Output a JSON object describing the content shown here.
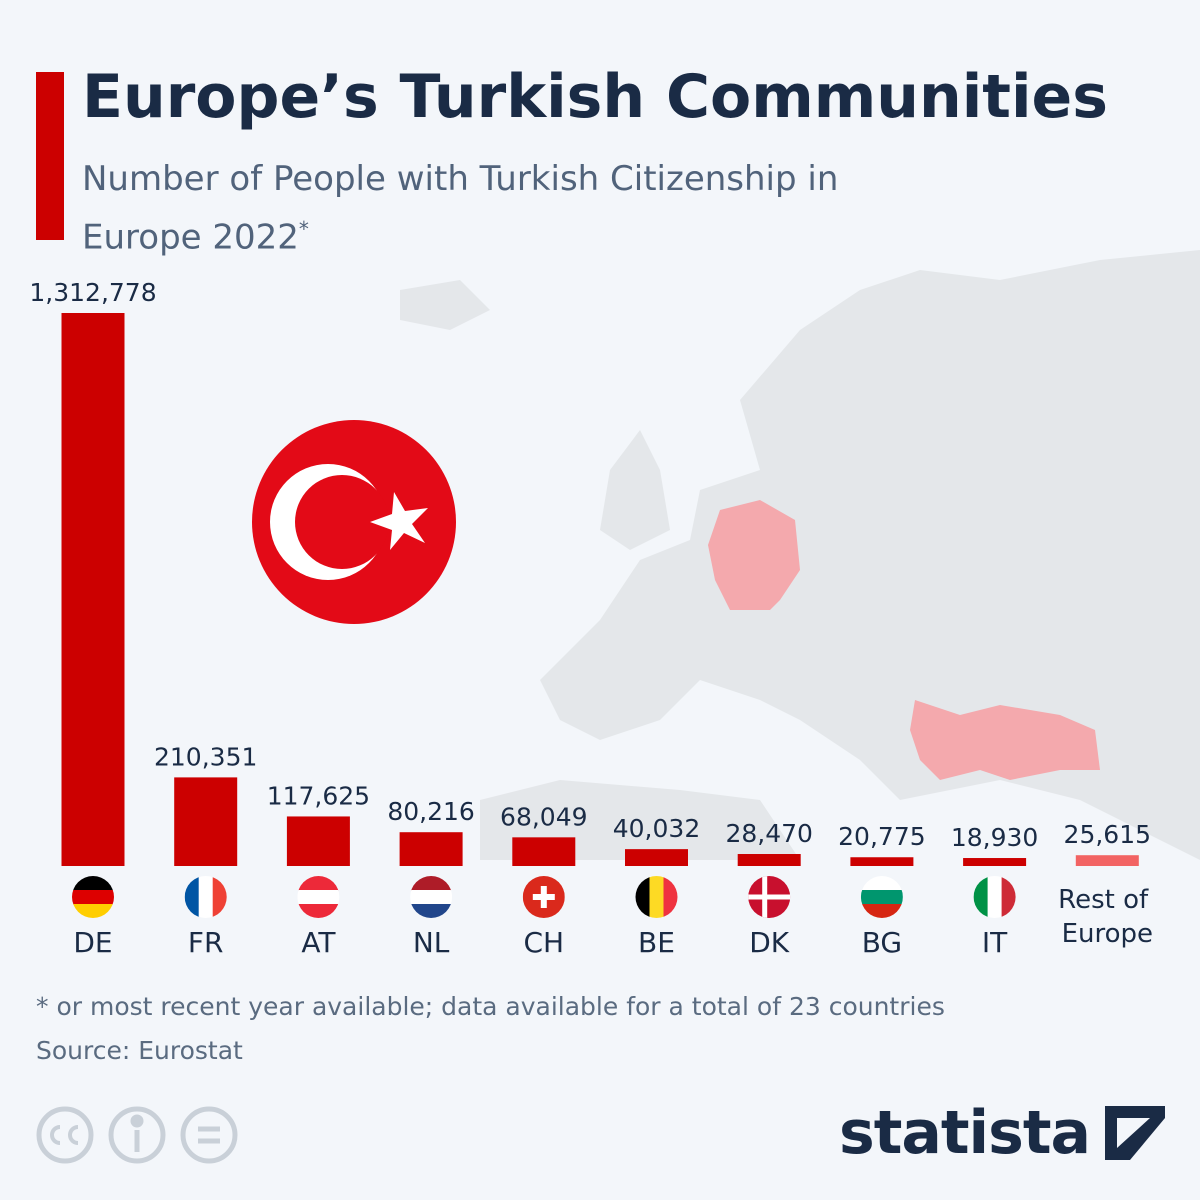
{
  "title": "Europe’s Turkish Communities",
  "subtitle": "Number of People with Turkish Citizenship in Europe 2022",
  "subtitle_note": "*",
  "chart_data": {
    "type": "bar",
    "categories": [
      "DE",
      "FR",
      "AT",
      "NL",
      "CH",
      "BE",
      "DK",
      "BG",
      "IT",
      "Rest of Europe"
    ],
    "values": [
      1312778,
      210351,
      117625,
      80216,
      68049,
      40032,
      28470,
      20775,
      18930,
      25615
    ],
    "value_labels": [
      "1,312,778",
      "210,351",
      "117,625",
      "80,216",
      "68,049",
      "40,032",
      "28,470",
      "20,775",
      "18,930",
      "25,615"
    ],
    "colors": [
      "#cc0000",
      "#cc0000",
      "#cc0000",
      "#cc0000",
      "#cc0000",
      "#cc0000",
      "#cc0000",
      "#cc0000",
      "#cc0000",
      "#f26363"
    ]
  },
  "footnote": "* or most recent year available; data available for a total of 23 countries",
  "source": "Source: Eurostat",
  "brand": "statista"
}
